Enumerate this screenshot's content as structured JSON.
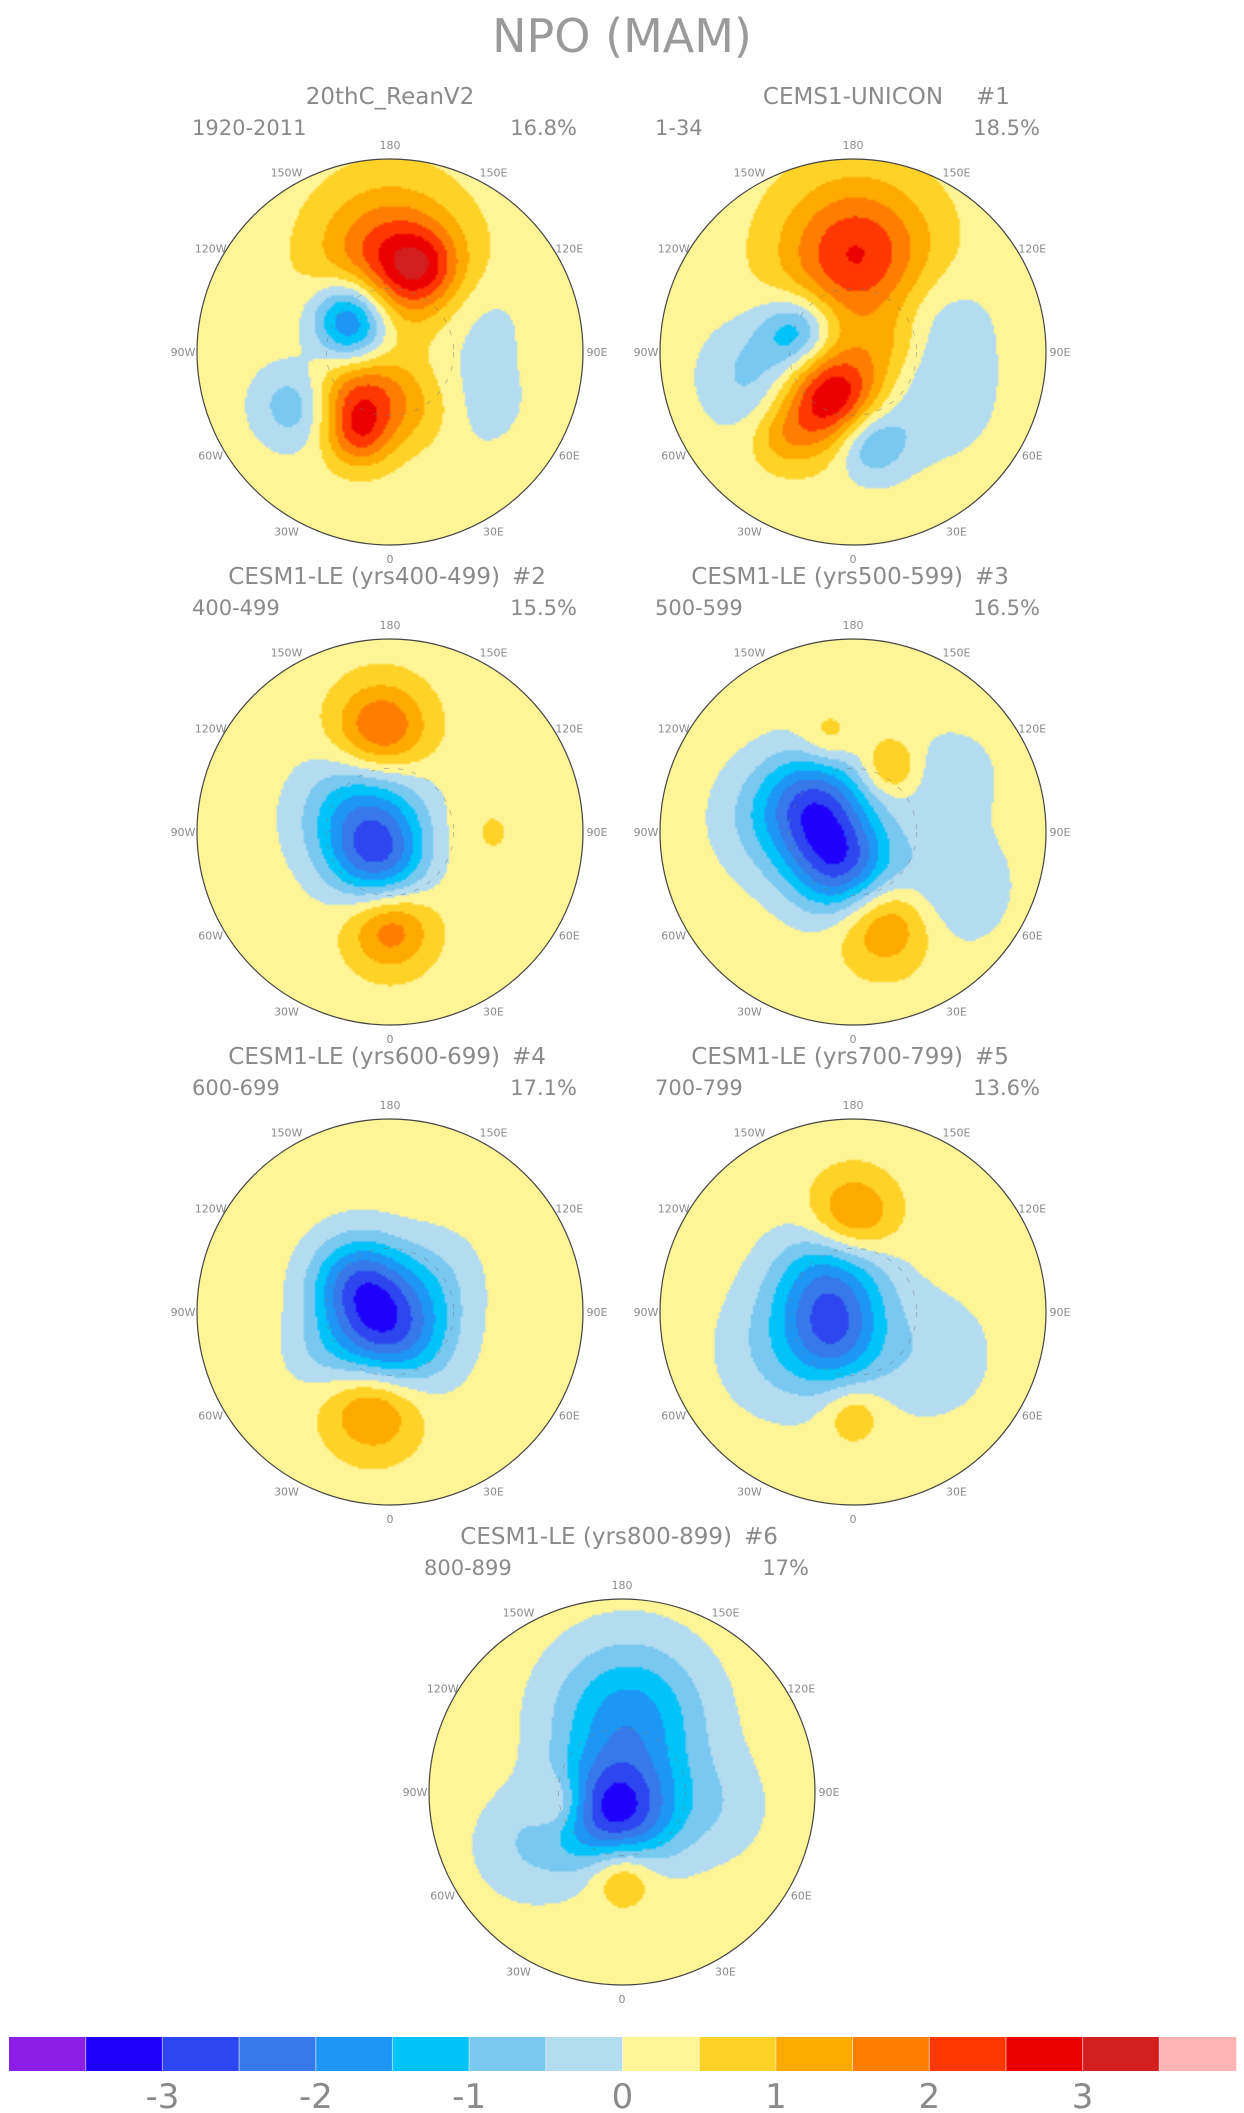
{
  "chart_data": {
    "type": "contour_map",
    "title": "NPO (MAM)",
    "projection": "polar stereographic, Northern Hemisphere",
    "longitude_labels": [
      "180",
      "150E",
      "120E",
      "90E",
      "60E",
      "30E",
      "0",
      "30W",
      "60W",
      "90W",
      "120W",
      "150W"
    ],
    "panels": [
      {
        "name": "20thC_ReanV2",
        "member": "",
        "years": "1920-2011",
        "variance": "16.8%",
        "blobs": [
          {
            "lon": 180,
            "lat": 46,
            "value": 2.1,
            "spread": 1.5
          },
          {
            "lon": 160,
            "lat": 48,
            "value": 1.3,
            "spread": 0.8
          },
          {
            "lon": -135,
            "lat": 63,
            "value": -1.9,
            "spread": 0.8
          },
          {
            "lon": -110,
            "lat": 72,
            "value": -1.3,
            "spread": 0.8
          },
          {
            "lon": -35,
            "lat": 65,
            "value": 2.0,
            "spread": 1.0
          },
          {
            "lon": -20,
            "lat": 48,
            "value": 1.3,
            "spread": 0.7
          },
          {
            "lon": -60,
            "lat": 40,
            "value": -1.2,
            "spread": 0.9
          },
          {
            "lon": 30,
            "lat": 60,
            "value": 0.7,
            "spread": 0.9
          },
          {
            "lon": 60,
            "lat": 45,
            "value": -0.5,
            "spread": 1.2
          },
          {
            "lon": 110,
            "lat": 45,
            "value": -0.4,
            "spread": 1.0
          }
        ]
      },
      {
        "name": "CEMS1-UNICON",
        "member": "#1",
        "years": "1-34",
        "variance": "18.5%",
        "blobs": [
          {
            "lon": 178,
            "lat": 45,
            "value": 2.3,
            "spread": 1.6
          },
          {
            "lon": -25,
            "lat": 66,
            "value": 3.0,
            "spread": 1.1
          },
          {
            "lon": -110,
            "lat": 63,
            "value": -1.7,
            "spread": 0.8
          },
          {
            "lon": -75,
            "lat": 45,
            "value": -1.0,
            "spread": 1.2
          },
          {
            "lon": 10,
            "lat": 48,
            "value": -1.6,
            "spread": 0.8
          },
          {
            "lon": -40,
            "lat": 38,
            "value": 0.8,
            "spread": 0.7
          },
          {
            "lon": 60,
            "lat": 48,
            "value": -0.7,
            "spread": 1.3
          },
          {
            "lon": 110,
            "lat": 48,
            "value": -0.6,
            "spread": 1.2
          },
          {
            "lon": 95,
            "lat": 70,
            "value": 0.6,
            "spread": 0.8
          }
        ]
      },
      {
        "name": "CESM1-LE (yrs400-499)",
        "member": "#2",
        "years": "400-499",
        "variance": "15.5%",
        "blobs": [
          {
            "lon": -175,
            "lat": 42,
            "value": 1.9,
            "spread": 1.0
          },
          {
            "lon": -120,
            "lat": 76,
            "value": -2.0,
            "spread": 1.3
          },
          {
            "lon": -20,
            "lat": 76,
            "value": -1.8,
            "spread": 1.0
          },
          {
            "lon": 0,
            "lat": 45,
            "value": 1.6,
            "spread": 0.9
          },
          {
            "lon": 90,
            "lat": 45,
            "value": 0.3,
            "spread": 1.0
          }
        ]
      },
      {
        "name": "CESM1-LE (yrs500-599)",
        "member": "#3",
        "years": "500-599",
        "variance": "16.5%",
        "blobs": [
          {
            "lon": -20,
            "lat": 74,
            "value": -2.7,
            "spread": 1.1
          },
          {
            "lon": -130,
            "lat": 68,
            "value": -2.1,
            "spread": 1.1
          },
          {
            "lon": 20,
            "lat": 45,
            "value": 1.5,
            "spread": 1.0
          },
          {
            "lon": 150,
            "lat": 55,
            "value": 1.0,
            "spread": 0.6
          },
          {
            "lon": -165,
            "lat": 45,
            "value": 0.7,
            "spread": 0.6
          },
          {
            "lon": -100,
            "lat": 55,
            "value": -1.0,
            "spread": 1.3
          },
          {
            "lon": 60,
            "lat": 40,
            "value": -0.8,
            "spread": 1.3
          },
          {
            "lon": 120,
            "lat": 38,
            "value": -0.6,
            "spread": 1.0
          }
        ]
      },
      {
        "name": "CESM1-LE (yrs600-699)",
        "member": "#4",
        "years": "600-699",
        "variance": "17.1%",
        "blobs": [
          {
            "lon": -10,
            "lat": 82,
            "value": -3.0,
            "spread": 1.3
          },
          {
            "lon": -135,
            "lat": 68,
            "value": -1.8,
            "spread": 1.0
          },
          {
            "lon": -10,
            "lat": 45,
            "value": 1.6,
            "spread": 1.0
          },
          {
            "lon": 130,
            "lat": 60,
            "value": -0.4,
            "spread": 1.0
          },
          {
            "lon": -60,
            "lat": 50,
            "value": -0.3,
            "spread": 0.8
          }
        ]
      },
      {
        "name": "CESM1-LE (yrs700-799)",
        "member": "#5",
        "years": "700-799",
        "variance": "13.6%",
        "blobs": [
          {
            "lon": 180,
            "lat": 45,
            "value": 1.5,
            "spread": 0.9
          },
          {
            "lon": -140,
            "lat": 73,
            "value": -2.0,
            "spread": 1.2
          },
          {
            "lon": -30,
            "lat": 75,
            "value": -1.5,
            "spread": 1.0
          },
          {
            "lon": -60,
            "lat": 55,
            "value": -0.9,
            "spread": 1.4
          },
          {
            "lon": 60,
            "lat": 50,
            "value": -0.6,
            "spread": 1.4
          },
          {
            "lon": 0,
            "lat": 42,
            "value": 0.8,
            "spread": 0.6
          }
        ]
      },
      {
        "name": "CESM1-LE (yrs800-899)",
        "member": "#6",
        "years": "800-899",
        "variance": "17%",
        "blobs": [
          {
            "lon": 175,
            "lat": 55,
            "value": -2.0,
            "spread": 1.6
          },
          {
            "lon": -15,
            "lat": 80,
            "value": -3.1,
            "spread": 1.2
          },
          {
            "lon": 0,
            "lat": 52,
            "value": 1.3,
            "spread": 0.7
          },
          {
            "lon": -80,
            "lat": 60,
            "value": 1.0,
            "spread": 0.6
          },
          {
            "lon": -60,
            "lat": 40,
            "value": -0.7,
            "spread": 1.2
          },
          {
            "lon": 80,
            "lat": 48,
            "value": -0.6,
            "spread": 1.2
          }
        ]
      }
    ],
    "colorbar": {
      "boundaries": [
        -3.5,
        -3.0,
        -2.5,
        -2.0,
        -1.5,
        -1.0,
        -0.5,
        0,
        0.5,
        1.0,
        1.5,
        2.0,
        2.5,
        3.0,
        3.5
      ],
      "colors": [
        "#8c1ee6",
        "#1e00fa",
        "#2d46f0",
        "#3778eb",
        "#1e96f5",
        "#00c3fa",
        "#78c8f0",
        "#b4dcf0",
        "#fff596",
        "#ffd228",
        "#ffaa00",
        "#ff7d00",
        "#ff3700",
        "#eb0000",
        "#d21e1e",
        "#ffb4b4"
      ],
      "tick_labels": [
        "-3",
        "-2",
        "-1",
        "0",
        "1",
        "2",
        "3"
      ],
      "tick_values": [
        -3,
        -2,
        -1,
        0,
        1,
        2,
        3
      ]
    }
  }
}
